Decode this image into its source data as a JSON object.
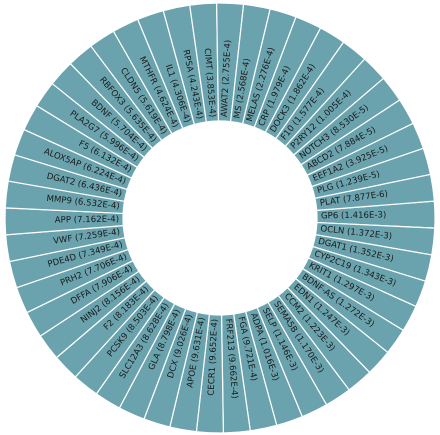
{
  "chart_data": {
    "type": "bar",
    "layout": "circular-wedge",
    "color": "#6aa3ae",
    "labels": [
      "GP6 (1.416E-3)",
      "OCLN (1.372E-3)",
      "DGAT1 (1.352E-3)",
      "CYP2C19 (1.343E-3)",
      "KRIT1 (1.297E-3)",
      "BDNF-AS (1.272E-3)",
      "EDN1 (1.247E-3)",
      "CCM2 (1.223E-3)",
      "SEMA5B (1.170E-3)",
      "SELP (1.146E-3)",
      "ADPA (1.016E-3)",
      "FGA (9.721E-4)",
      "FRF213 (9.662E-4)",
      "CECR1 (9.652E-4)",
      "APOE (9.631E-4)",
      "DCX (9.026E-4)",
      "GLA (8.798E-4)",
      "SLC12A3 (8.628E-4)",
      "PCSK9 (8.503E-4)",
      "F2 (8.183E-4)",
      "NINJ2 (8.156E-4)",
      "DFFA (7.906E-4)",
      "PRH2 (7.706E-4)",
      "PDE4D (7.349E-4)",
      "VWF (7.259E-4)",
      "APP (7.162E-4)",
      "MMP9 (6.532E-4)",
      "DGAT2 (6.436E-4)",
      "ALOX5AP (6.224E-4)",
      "F5 (6.132E-4)",
      "PLA2G7 (5.996E-4)",
      "BDNF (5.704E-4)",
      "RBFOX3 (5.635E-4)",
      "CLDN5 (5.619E-4)",
      "MTHFR (4.624E-4)",
      "IL1 (4.306E-4)",
      "RPSA (4.243E-4)",
      "CIMT (3.853E-4)",
      "AWAT2 (2.755E-4)",
      "MS (2.568E-4)",
      "MELAS (2.276E-4)",
      "CRP (1.979E-4)",
      "DOCK3 (1.862E-4)",
      "F10 (1.577E-4)",
      "P2RY12 (1.005E-4)",
      "NOTCH3 (8.530E-5)",
      "ABCD2 (7.884E-5)",
      "EEF1A2 (3.925E-5)",
      "PLG (1.239E-5)",
      "PLAT (7.877E-6)"
    ]
  }
}
